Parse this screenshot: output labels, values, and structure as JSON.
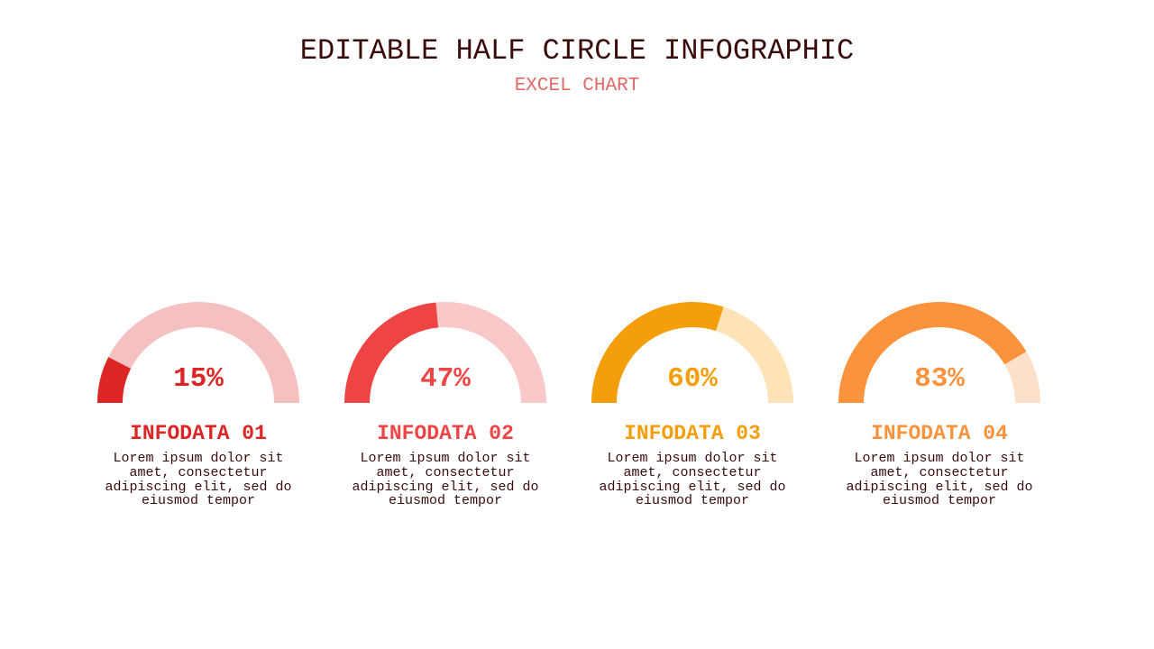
{
  "title": "EDITABLE HALF CIRCLE INFOGRAPHIC",
  "subtitle": "EXCEL CHART",
  "chart_data": [
    {
      "type": "pie",
      "label": "15%",
      "value": 15,
      "name": "INFODATA 01",
      "desc": "Lorem ipsum dolor sit amet, consectetur adipiscing elit, sed do eiusmod tempor",
      "color": "#dc2626",
      "track_color": "#f4c0c0"
    },
    {
      "type": "pie",
      "label": "47%",
      "value": 47,
      "name": "INFODATA 02",
      "desc": "Lorem ipsum dolor sit amet, consectetur adipiscing elit, sed do eiusmod tempor",
      "color": "#ef4444",
      "track_color": "#f9c9c9"
    },
    {
      "type": "pie",
      "label": "60%",
      "value": 60,
      "name": "INFODATA 03",
      "desc": "Lorem ipsum dolor sit amet, consectetur adipiscing elit, sed do eiusmod tempor",
      "color": "#f59e0b",
      "track_color": "#fde3b7"
    },
    {
      "type": "pie",
      "label": "83%",
      "value": 83,
      "name": "INFODATA 04",
      "desc": "Lorem ipsum dolor sit amet, consectetur adipiscing elit, sed do eiusmod tempor",
      "color": "#fb923c",
      "track_color": "#fde0c9"
    }
  ]
}
